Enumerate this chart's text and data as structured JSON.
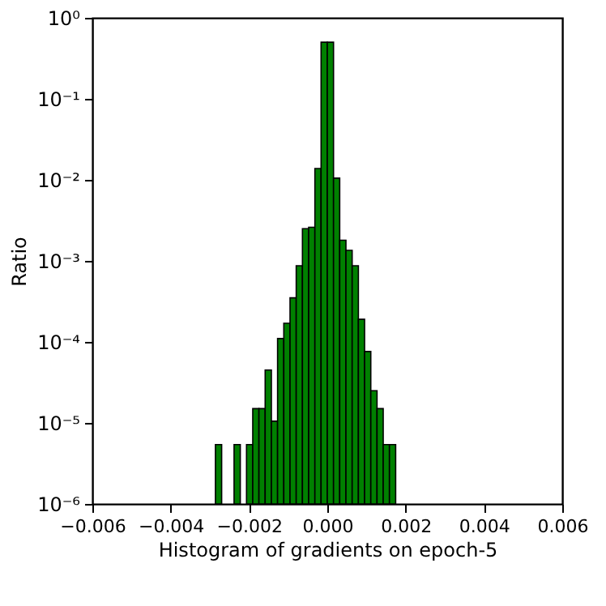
{
  "chart_data": {
    "type": "histogram",
    "xlabel": "Histogram of gradients on epoch-5",
    "ylabel": "Ratio",
    "bins": [
      -0.002857,
      -0.002698,
      -0.002539,
      -0.002381,
      -0.002222,
      -0.002063,
      -0.001904,
      -0.001746,
      -0.001587,
      -0.001428,
      -0.00127,
      -0.001111,
      -0.000952,
      -0.000794,
      -0.000635,
      -0.000476,
      -0.000317,
      -0.000159,
      0,
      0.000159,
      0.000317,
      0.000476,
      0.000635,
      0.000794,
      0.000952,
      0.001111,
      0.00127,
      0.001428,
      0.001587,
      0.001746
    ],
    "values": [
      5.4e-06,
      null,
      null,
      5.4e-06,
      null,
      5.4e-06,
      1.5e-05,
      1.5e-05,
      4.5e-05,
      1.05e-05,
      0.00011,
      0.00017,
      0.00035,
      0.00087,
      0.0025,
      0.0026,
      0.0138,
      0.5,
      0.5,
      0.0105,
      0.0018,
      0.00135,
      0.00087,
      0.00019,
      7.6e-05,
      2.5e-05,
      1.5e-05,
      5.4e-06,
      5.4e-06
    ],
    "color": "#008000",
    "log": "y",
    "grid": false,
    "xlim": [
      -0.006,
      0.006
    ],
    "xticks": [
      {
        "value": -0.006,
        "label": "−0.006"
      },
      {
        "value": -0.004,
        "label": "−0.004"
      },
      {
        "value": -0.002,
        "label": "−0.002"
      },
      {
        "value": 0,
        "label": "0.000"
      },
      {
        "value": 0.002,
        "label": "0.002"
      },
      {
        "value": 0.004,
        "label": "0.004"
      },
      {
        "value": 0.006,
        "label": "0.006"
      }
    ],
    "ylim": [
      1e-06,
      1
    ],
    "yticks": [
      {
        "value": 1e-06,
        "label": "10⁻⁶"
      },
      {
        "value": 1e-05,
        "label": "10⁻⁵"
      },
      {
        "value": 0.0001,
        "label": "10⁻⁴"
      },
      {
        "value": 0.001,
        "label": "10⁻³"
      },
      {
        "value": 0.01,
        "label": "10⁻²"
      },
      {
        "value": 0.1,
        "label": "10⁻¹"
      },
      {
        "value": 1,
        "label": "10⁰"
      }
    ]
  }
}
